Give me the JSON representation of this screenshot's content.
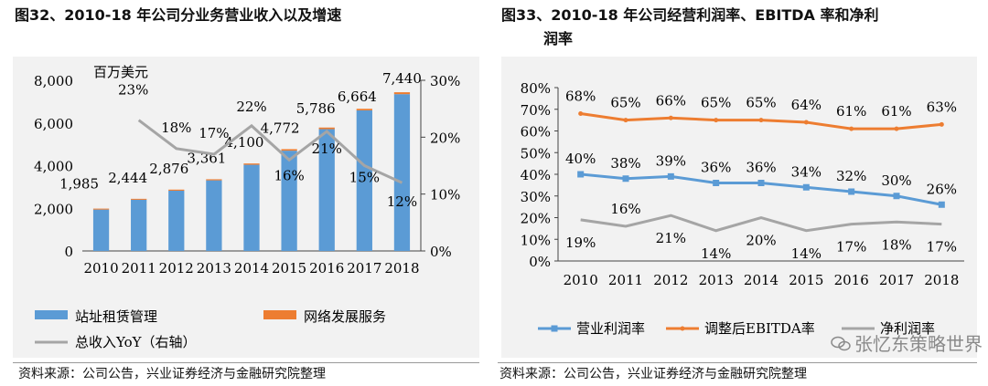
{
  "left": {
    "title": "图32、2010-18 年公司分业务营业收入以及增速",
    "source": "资料来源：公司公告，兴业证券经济与金融研究院整理",
    "unit_label": "百万美元"
  },
  "right": {
    "title_line1": "图33、2010-18 年公司经营利润率、EBITDA 率和净利",
    "title_line2": "润率",
    "source": "资料来源：公司公告，兴业证券经济与金融研究院整理"
  },
  "watermark": {
    "text": "张忆东策略世界",
    "icon": "wechat-icon"
  },
  "colors": {
    "blue": "#5b9bd5",
    "orange": "#ed7d31",
    "gray": "#a5a5a5",
    "panel_bg": "#f2f2f2"
  },
  "chart_data": [
    {
      "type": "bar",
      "categories": [
        "2010",
        "2011",
        "2012",
        "2013",
        "2014",
        "2015",
        "2016",
        "2017",
        "2018"
      ],
      "series": [
        {
          "name": "站址租赁管理",
          "type": "bar",
          "stack": "revenue",
          "values": [
            1940,
            2400,
            2825,
            3310,
            4040,
            4700,
            5710,
            6590,
            7350
          ]
        },
        {
          "name": "网络发展服务",
          "type": "bar",
          "stack": "revenue",
          "values": [
            45,
            44,
            51,
            51,
            60,
            72,
            76,
            74,
            90
          ]
        },
        {
          "name": "总收入YoY（右轴）",
          "type": "line",
          "axis": "right",
          "values": [
            null,
            23,
            18,
            17,
            22,
            16,
            21,
            15,
            12
          ]
        }
      ],
      "total_labels": [
        "1,985",
        "2,444",
        "2,876",
        "3,361",
        "4,100",
        "4,772",
        "5,786",
        "6,664",
        "7,440"
      ],
      "yoy_labels": [
        "",
        "23%",
        "18%",
        "17%",
        "22%",
        "16%",
        "21%",
        "15%",
        "12%"
      ],
      "ylim": [
        0,
        8000
      ],
      "yticks": [
        "0",
        "2,000",
        "4,000",
        "6,000",
        "8,000"
      ],
      "y2lim": [
        0,
        30
      ],
      "y2ticks": [
        "0%",
        "10%",
        "20%",
        "30%"
      ],
      "legend_position": "bottom",
      "grid": false
    },
    {
      "type": "line",
      "categories": [
        "2010",
        "2011",
        "2012",
        "2013",
        "2014",
        "2015",
        "2016",
        "2017",
        "2018"
      ],
      "series": [
        {
          "name": "营业利润率",
          "values": [
            40,
            38,
            39,
            36,
            36,
            34,
            32,
            30,
            26
          ],
          "labels": [
            "40%",
            "38%",
            "39%",
            "36%",
            "36%",
            "34%",
            "32%",
            "30%",
            "26%"
          ]
        },
        {
          "name": "调整后EBITDA率",
          "values": [
            68,
            65,
            66,
            65,
            65,
            64,
            61,
            61,
            63
          ],
          "labels": [
            "68%",
            "65%",
            "66%",
            "65%",
            "65%",
            "64%",
            "61%",
            "61%",
            "63%"
          ]
        },
        {
          "name": "净利润率",
          "values": [
            19,
            16,
            21,
            14,
            20,
            14,
            17,
            18,
            17
          ],
          "labels": [
            "19%",
            "16%",
            "21%",
            "14%",
            "20%",
            "14%",
            "17%",
            "18%",
            "17%"
          ]
        }
      ],
      "ylim": [
        0,
        80
      ],
      "yticks": [
        "0%",
        "10%",
        "20%",
        "30%",
        "40%",
        "50%",
        "60%",
        "70%",
        "80%"
      ],
      "legend_position": "bottom",
      "grid": false
    }
  ]
}
